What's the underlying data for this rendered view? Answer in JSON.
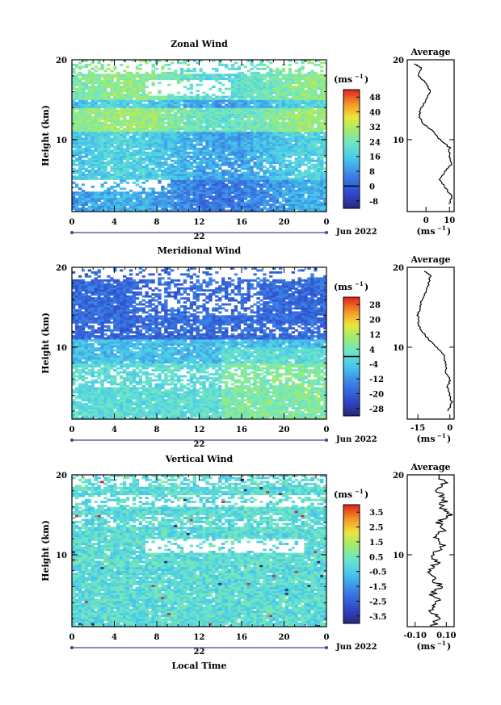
{
  "chart_data": [
    {
      "type": "heatmap",
      "title": "Zonal Wind",
      "ylabel": "Height (km)",
      "xlim": [
        0,
        24
      ],
      "ylim": [
        1,
        20
      ],
      "x_ticks": [
        "0",
        "4",
        "8",
        "12",
        "16",
        "20",
        "0"
      ],
      "y_ticks": [
        "10",
        "20"
      ],
      "day_label": "22",
      "month_label": "Jun 2022",
      "colorbar": {
        "unit": "(ms",
        "unit_sup": "−1",
        "ticks": [
          "48",
          "40",
          "32",
          "24",
          "16",
          "8",
          "0",
          "-8"
        ],
        "range": [
          -12,
          52
        ],
        "contour_at": 0
      },
      "average": {
        "title": "Average",
        "x_ticks": [
          "0",
          "10"
        ],
        "xlim": [
          -8,
          12
        ],
        "ylim": [
          1,
          20
        ],
        "y_ticks": [
          "10",
          "20"
        ],
        "xlabel": "(ms",
        "xlabel_sup": "−1",
        "profile": [
          [
            10,
            2
          ],
          [
            11,
            3
          ],
          [
            8,
            4
          ],
          [
            6,
            5
          ],
          [
            8,
            6
          ],
          [
            11,
            7
          ],
          [
            10,
            8
          ],
          [
            10,
            9
          ],
          [
            6,
            10
          ],
          [
            3,
            11
          ],
          [
            -1,
            12
          ],
          [
            -3,
            13
          ],
          [
            -2,
            14
          ],
          [
            0,
            15
          ],
          [
            2,
            16
          ],
          [
            0,
            17
          ],
          [
            -3,
            18
          ],
          [
            -2,
            19
          ],
          [
            -5,
            19.5
          ]
        ]
      }
    },
    {
      "type": "heatmap",
      "title": "Meridional Wind",
      "ylabel": "Height (km)",
      "xlim": [
        0,
        24
      ],
      "ylim": [
        1,
        20
      ],
      "x_ticks": [
        "0",
        "4",
        "8",
        "12",
        "16",
        "20",
        "0"
      ],
      "y_ticks": [
        "10",
        "20"
      ],
      "day_label": "22",
      "month_label": "Jun 2022",
      "colorbar": {
        "unit": "(ms",
        "unit_sup": "−1",
        "ticks": [
          "28",
          "20",
          "12",
          "4",
          "-4",
          "-12",
          "-20",
          "-28"
        ],
        "range": [
          -32,
          32
        ],
        "contour_at": 0
      },
      "average": {
        "title": "Average",
        "x_ticks": [
          "-15",
          "0"
        ],
        "xlim": [
          -20,
          2
        ],
        "ylim": [
          1,
          20
        ],
        "y_ticks": [
          "10",
          "20"
        ],
        "xlabel": "(ms",
        "xlabel_sup": "−1",
        "profile": [
          [
            -1,
            2
          ],
          [
            1,
            3
          ],
          [
            0,
            4
          ],
          [
            -1,
            5
          ],
          [
            0,
            6
          ],
          [
            -2,
            7
          ],
          [
            -2,
            8
          ],
          [
            -3,
            9
          ],
          [
            -6,
            10
          ],
          [
            -10,
            11
          ],
          [
            -13,
            12
          ],
          [
            -15,
            13
          ],
          [
            -15,
            14
          ],
          [
            -14,
            15
          ],
          [
            -13,
            16
          ],
          [
            -11,
            17
          ],
          [
            -10,
            18
          ],
          [
            -9,
            19
          ],
          [
            -12,
            19.5
          ]
        ]
      }
    },
    {
      "type": "heatmap",
      "title": "Vertical Wind",
      "ylabel": "Height (km)",
      "xlabel": "Local Time",
      "xlim": [
        0,
        24
      ],
      "ylim": [
        1,
        20
      ],
      "x_ticks": [
        "0",
        "4",
        "8",
        "12",
        "16",
        "20",
        "0"
      ],
      "y_ticks": [
        "10",
        "20"
      ],
      "day_label": "22",
      "month_label": "Jun 2022",
      "colorbar": {
        "unit": "(ms",
        "unit_sup": "−1",
        "ticks": [
          "3.5",
          "2.5",
          "1.5",
          "0.5",
          "-0.5",
          "-1.5",
          "-2.5",
          "-3.5"
        ],
        "range": [
          -4,
          4
        ]
      },
      "average": {
        "title": "Average",
        "x_ticks": [
          "-0.10",
          "0.10"
        ],
        "xlim": [
          -0.15,
          0.15
        ],
        "ylim": [
          1,
          20
        ],
        "y_ticks": [
          "10",
          "20"
        ],
        "xlabel": "(ms",
        "xlabel_sup": "−1",
        "profile": [
          [
            0.02,
            1
          ],
          [
            0.04,
            2
          ],
          [
            0.0,
            3
          ],
          [
            0.05,
            4
          ],
          [
            0.01,
            5
          ],
          [
            0.06,
            6
          ],
          [
            0.02,
            7
          ],
          [
            0.0,
            8
          ],
          [
            0.04,
            9
          ],
          [
            0.02,
            10
          ],
          [
            0.08,
            11
          ],
          [
            0.03,
            12
          ],
          [
            0.07,
            13
          ],
          [
            0.05,
            14
          ],
          [
            0.12,
            15
          ],
          [
            0.06,
            16
          ],
          [
            0.1,
            17
          ],
          [
            0.04,
            18
          ],
          [
            0.09,
            19
          ],
          [
            0.05,
            20
          ]
        ]
      }
    }
  ]
}
